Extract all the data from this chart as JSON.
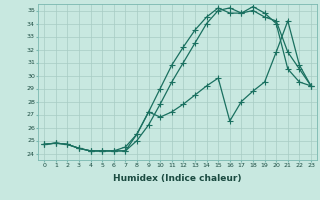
{
  "title": "",
  "xlabel": "Humidex (Indice chaleur)",
  "ylabel": "",
  "background_color": "#c8e8e0",
  "grid_color": "#a8ccc4",
  "line_color": "#1a7060",
  "xlim": [
    -0.5,
    23.5
  ],
  "ylim": [
    23.5,
    35.5
  ],
  "yticks": [
    24,
    25,
    26,
    27,
    28,
    29,
    30,
    31,
    32,
    33,
    34,
    35
  ],
  "xticks": [
    0,
    1,
    2,
    3,
    4,
    5,
    6,
    7,
    8,
    9,
    10,
    11,
    12,
    13,
    14,
    15,
    16,
    17,
    18,
    19,
    20,
    21,
    22,
    23
  ],
  "line1_x": [
    0,
    1,
    2,
    3,
    4,
    5,
    6,
    7,
    8,
    9,
    10,
    11,
    12,
    13,
    14,
    15,
    16,
    17,
    18,
    19,
    20,
    21,
    22,
    23
  ],
  "line1_y": [
    24.7,
    24.8,
    24.7,
    24.4,
    24.2,
    24.2,
    24.2,
    24.2,
    25.5,
    27.2,
    29.0,
    30.8,
    32.2,
    33.5,
    34.5,
    35.2,
    34.8,
    34.8,
    35.3,
    34.8,
    34.0,
    30.5,
    29.5,
    29.2
  ],
  "line2_x": [
    0,
    1,
    2,
    3,
    4,
    5,
    6,
    7,
    8,
    9,
    10,
    11,
    12,
    13,
    14,
    15,
    16,
    17,
    18,
    19,
    20,
    21,
    22,
    23
  ],
  "line2_y": [
    24.7,
    24.8,
    24.7,
    24.4,
    24.2,
    24.2,
    24.2,
    24.2,
    25.0,
    26.2,
    27.8,
    29.5,
    31.0,
    32.5,
    34.0,
    35.0,
    35.2,
    34.8,
    35.0,
    34.5,
    34.2,
    31.8,
    30.5,
    29.2
  ],
  "line3_x": [
    0,
    1,
    2,
    3,
    4,
    5,
    6,
    7,
    8,
    9,
    10,
    11,
    12,
    13,
    14,
    15,
    16,
    17,
    18,
    19,
    20,
    21,
    22,
    23
  ],
  "line3_y": [
    24.7,
    24.8,
    24.7,
    24.4,
    24.2,
    24.2,
    24.2,
    24.5,
    25.5,
    27.2,
    26.8,
    27.2,
    27.8,
    28.5,
    29.2,
    29.8,
    26.5,
    28.0,
    28.8,
    29.5,
    31.8,
    34.2,
    30.8,
    29.2
  ]
}
